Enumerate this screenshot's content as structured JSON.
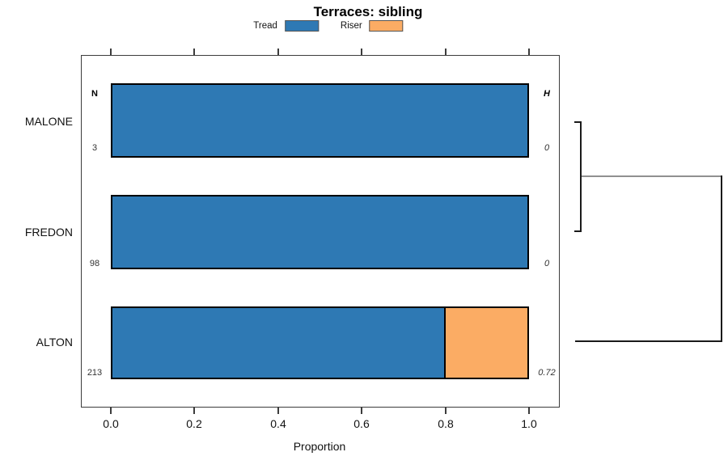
{
  "title": "Terraces: sibling",
  "legend": {
    "items": [
      {
        "label": "Tread",
        "color": "#2E79B4"
      },
      {
        "label": "Riser",
        "color": "#FBAC64"
      }
    ]
  },
  "columns": {
    "n_header": "N",
    "h_header": "H"
  },
  "rows": [
    {
      "name": "MALONE",
      "n": "3",
      "h": "0"
    },
    {
      "name": "FREDON",
      "n": "98",
      "h": "0"
    },
    {
      "name": "ALTON",
      "n": "213",
      "h": "0.72"
    }
  ],
  "axis": {
    "xlabel": "Proportion",
    "tick_labels": [
      "0.0",
      "0.2",
      "0.4",
      "0.6",
      "0.8",
      "1.0"
    ]
  },
  "chart_data": {
    "type": "bar",
    "orientation": "horizontal",
    "stacked": true,
    "title": "Terraces: sibling",
    "xlabel": "Proportion",
    "xlim": [
      0,
      1
    ],
    "x_ticks": [
      0.0,
      0.2,
      0.4,
      0.6,
      0.8,
      1.0
    ],
    "grid": false,
    "legend_position": "top",
    "categories": [
      "MALONE",
      "FREDON",
      "ALTON"
    ],
    "series": [
      {
        "name": "Tread",
        "color": "#2E79B4",
        "values": [
          1.0,
          1.0,
          0.8
        ]
      },
      {
        "name": "Riser",
        "color": "#FBAC64",
        "values": [
          0.0,
          0.0,
          0.2
        ]
      }
    ],
    "row_counts": {
      "label": "N",
      "values": [
        3,
        98,
        213
      ]
    },
    "row_heights": {
      "label": "H",
      "values": [
        0,
        0,
        0.72
      ]
    },
    "dendrogram": {
      "side": "right",
      "merges": [
        {
          "members": [
            "MALONE",
            "FREDON"
          ],
          "height": 0
        },
        {
          "members": [
            "MALONE+FREDON",
            "ALTON"
          ],
          "height": 0.72
        }
      ]
    }
  }
}
